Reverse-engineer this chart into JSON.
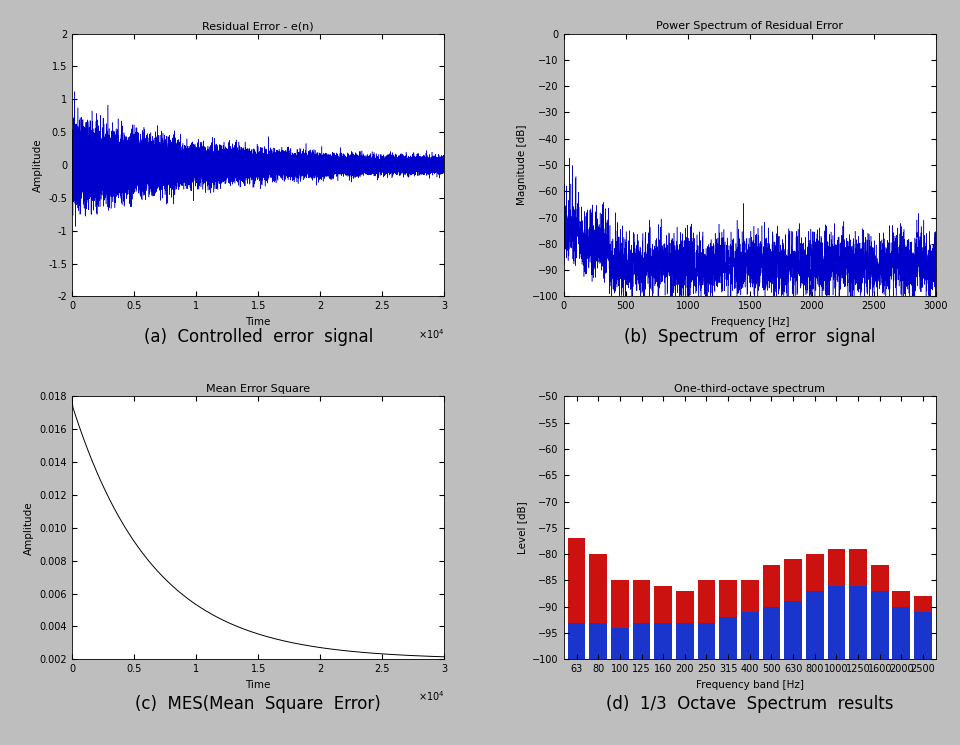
{
  "fig_bg": "#bebebe",
  "panel_bg": "#d0d0d0",
  "title_a": "Residual Error - e(n)",
  "title_b": "Power Spectrum of Residual Error",
  "title_c": "Mean Error Square",
  "title_d": "One-third-octave spectrum",
  "xlabel_a": "Time",
  "xlabel_b": "Frequency [Hz]",
  "xlabel_c": "Time",
  "xlabel_d": "Frequency band [Hz]",
  "ylabel_a": "Amplitude",
  "ylabel_b": "Magnitude [dB]",
  "ylabel_c": "Amplitude",
  "ylabel_d": "Level [dB]",
  "caption_a": "(a)  Controlled  error  signal",
  "caption_b": "(b)  Spectrum  of  error  signal",
  "caption_c": "(c)  MES(Mean  Square  Error)",
  "caption_d": "(d)  1/3  Octave  Spectrum  results",
  "n_samples": 30000,
  "ylim_a": [
    -2,
    2
  ],
  "ylim_b": [
    -100,
    0
  ],
  "xlim_b": [
    0,
    3000
  ],
  "ylim_c": [
    0.002,
    0.018
  ],
  "xlim_c": [
    0,
    30000
  ],
  "octave_freqs": [
    63,
    80,
    100,
    125,
    160,
    200,
    250,
    315,
    400,
    500,
    630,
    800,
    1000,
    1250,
    1600,
    2000,
    2500
  ],
  "octave_blue": [
    -93,
    -93,
    -94,
    -93,
    -93,
    -93,
    -93,
    -92,
    -91,
    -90,
    -89,
    -87,
    -86,
    -86,
    -87,
    -90,
    -91
  ],
  "octave_red_top": [
    -77,
    -80,
    -85,
    -85,
    -86,
    -87,
    -85,
    -85,
    -85,
    -82,
    -81,
    -80,
    -79,
    -79,
    -82,
    -87,
    -88
  ],
  "ylim_d": [
    -100,
    -50
  ],
  "line_color": "#0000cc",
  "bar_blue": "#1a35cc",
  "bar_red": "#cc1111"
}
